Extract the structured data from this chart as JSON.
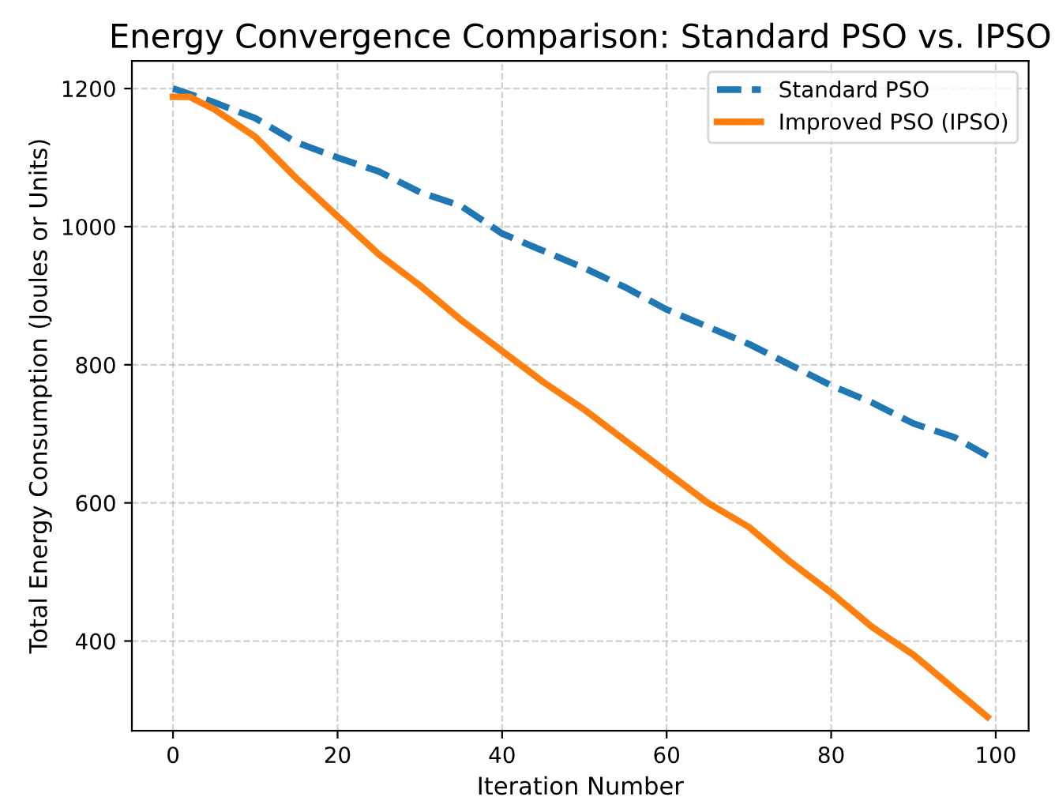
{
  "chart_data": {
    "type": "line",
    "title": "Energy Convergence Comparison: Standard PSO vs. IPSO",
    "xlabel": "Iteration Number",
    "ylabel": "Total Energy Consumption (Joules or Units)",
    "xlim": [
      -5,
      104
    ],
    "ylim": [
      270,
      1240
    ],
    "xticks": [
      0,
      20,
      40,
      60,
      80,
      100
    ],
    "yticks": [
      400,
      600,
      800,
      1000,
      1200
    ],
    "grid": true,
    "legend": "top right",
    "series": [
      {
        "name": "Standard PSO",
        "color": "#1f77b4",
        "line_style": "dashed",
        "x": [
          0,
          5,
          10,
          15,
          20,
          25,
          30,
          35,
          40,
          45,
          50,
          55,
          60,
          65,
          70,
          75,
          80,
          85,
          90,
          95,
          99
        ],
        "values": [
          1200,
          1180,
          1157,
          1122,
          1100,
          1080,
          1050,
          1030,
          990,
          965,
          940,
          912,
          880,
          855,
          830,
          800,
          770,
          745,
          715,
          695,
          668
        ]
      },
      {
        "name": "Improved PSO (IPSO)",
        "color": "#ff7f0e",
        "line_style": "solid",
        "x": [
          0,
          2,
          5,
          10,
          15,
          20,
          25,
          30,
          35,
          40,
          45,
          50,
          55,
          60,
          65,
          70,
          75,
          80,
          85,
          90,
          95,
          99
        ],
        "values": [
          1188,
          1188,
          1170,
          1130,
          1070,
          1015,
          960,
          915,
          865,
          820,
          775,
          735,
          690,
          645,
          600,
          565,
          515,
          470,
          420,
          380,
          330,
          290
        ]
      }
    ]
  }
}
